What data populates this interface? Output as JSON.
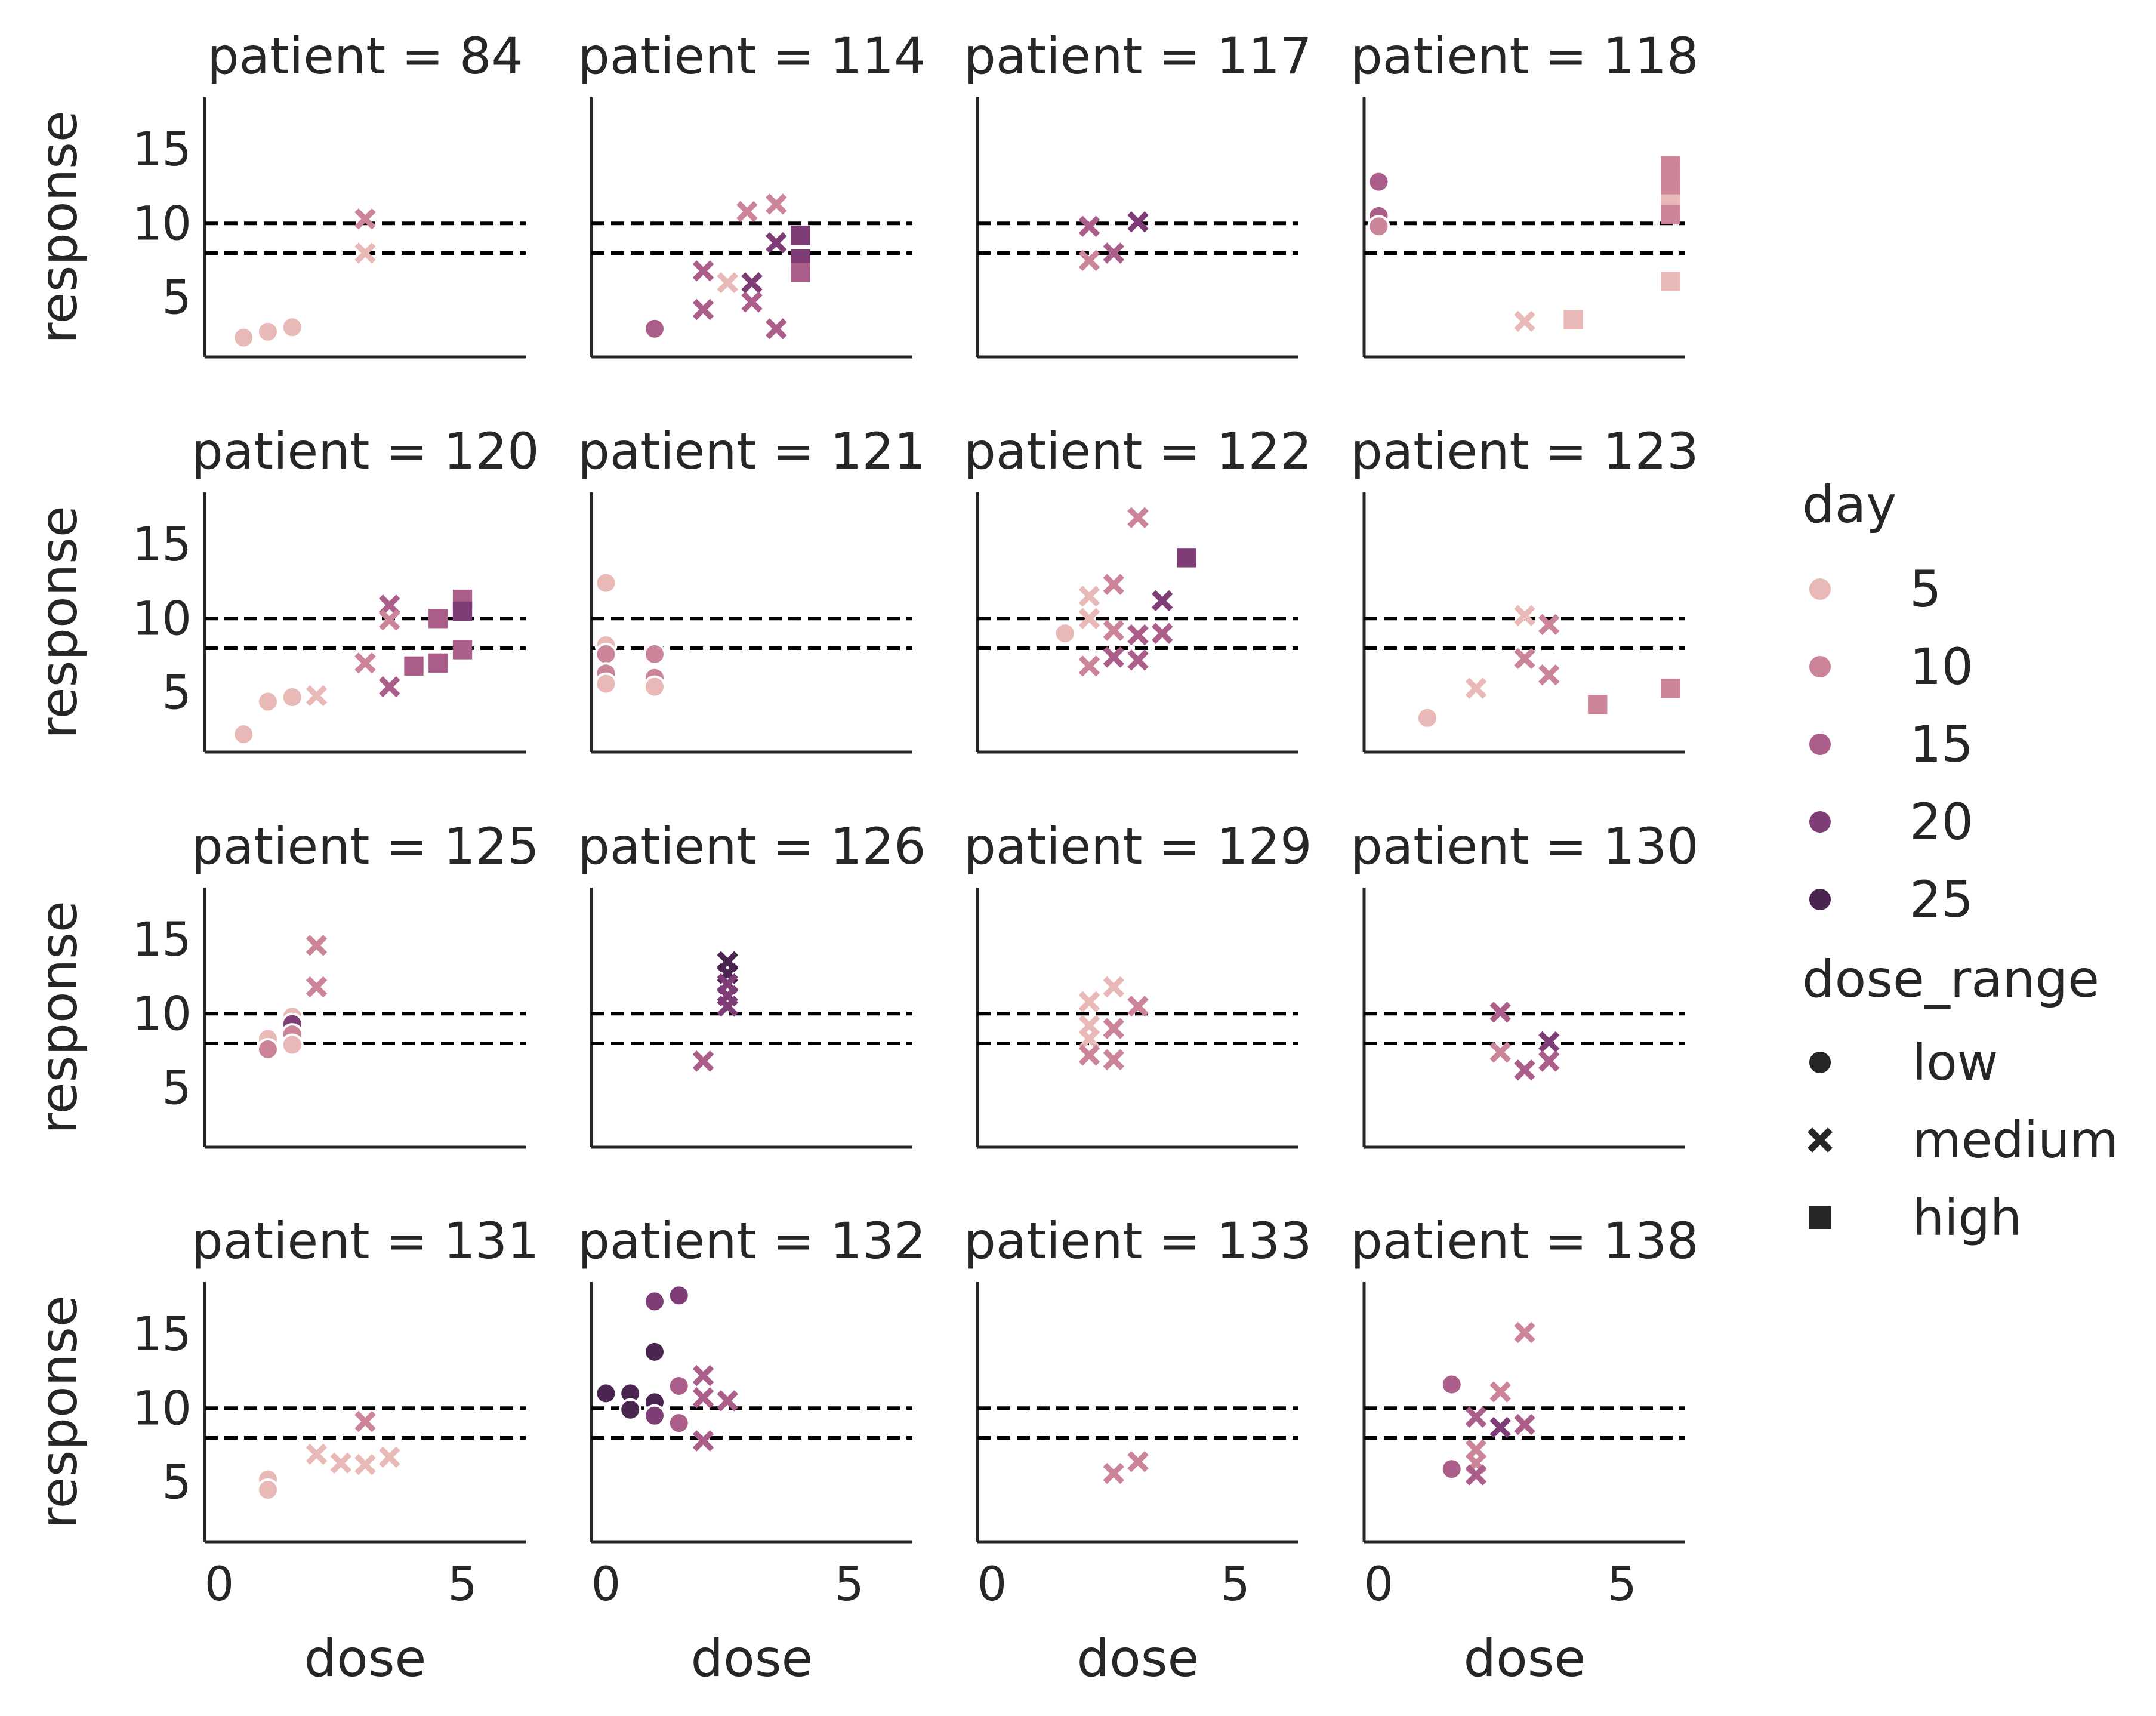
{
  "chart_data": {
    "type": "scatter",
    "facet_label": "patient",
    "xlabel": "dose",
    "ylabel": "response",
    "xlim": [
      -0.3,
      6.3
    ],
    "ylim": [
      1,
      18.5
    ],
    "xticks": [
      0,
      5
    ],
    "yticks": [
      5,
      10,
      15
    ],
    "reference_lines": [
      8,
      10
    ],
    "grid": false,
    "legend_position": "right",
    "hue": {
      "title": "day",
      "entries": [
        {
          "label": "5",
          "color": "#e8b9b6"
        },
        {
          "label": "10",
          "color": "#cc8499"
        },
        {
          "label": "15",
          "color": "#ac5e8a"
        },
        {
          "label": "20",
          "color": "#7e3d77"
        },
        {
          "label": "25",
          "color": "#4a2550"
        }
      ]
    },
    "style": {
      "title": "dose_range",
      "entries": [
        {
          "label": "low",
          "marker": "circle"
        },
        {
          "label": "medium",
          "marker": "x"
        },
        {
          "label": "high",
          "marker": "square"
        }
      ]
    },
    "panels": [
      {
        "patient": "84",
        "points": [
          {
            "x": 0.5,
            "y": 2.3,
            "day": 5,
            "dose_range": "low"
          },
          {
            "x": 1.0,
            "y": 2.7,
            "day": 5,
            "dose_range": "low"
          },
          {
            "x": 1.5,
            "y": 3.0,
            "day": 5,
            "dose_range": "low"
          },
          {
            "x": 3.0,
            "y": 10.3,
            "day": 10,
            "dose_range": "medium"
          },
          {
            "x": 3.0,
            "y": 8.0,
            "day": 5,
            "dose_range": "medium"
          }
        ]
      },
      {
        "patient": "114",
        "points": [
          {
            "x": 1.0,
            "y": 2.9,
            "day": 15,
            "dose_range": "low"
          },
          {
            "x": 2.0,
            "y": 4.2,
            "day": 15,
            "dose_range": "medium"
          },
          {
            "x": 2.0,
            "y": 6.8,
            "day": 15,
            "dose_range": "medium"
          },
          {
            "x": 2.5,
            "y": 6.0,
            "day": 5,
            "dose_range": "medium"
          },
          {
            "x": 2.9,
            "y": 10.8,
            "day": 10,
            "dose_range": "medium"
          },
          {
            "x": 3.0,
            "y": 6.0,
            "day": 20,
            "dose_range": "medium"
          },
          {
            "x": 3.0,
            "y": 4.7,
            "day": 15,
            "dose_range": "medium"
          },
          {
            "x": 3.5,
            "y": 11.3,
            "day": 10,
            "dose_range": "medium"
          },
          {
            "x": 3.5,
            "y": 8.7,
            "day": 20,
            "dose_range": "medium"
          },
          {
            "x": 3.5,
            "y": 2.9,
            "day": 15,
            "dose_range": "medium"
          },
          {
            "x": 4.0,
            "y": 9.2,
            "day": 20,
            "dose_range": "high"
          },
          {
            "x": 4.0,
            "y": 7.6,
            "day": 20,
            "dose_range": "high"
          },
          {
            "x": 4.0,
            "y": 6.7,
            "day": 15,
            "dose_range": "high"
          }
        ]
      },
      {
        "patient": "117",
        "points": [
          {
            "x": 2.0,
            "y": 9.8,
            "day": 15,
            "dose_range": "medium"
          },
          {
            "x": 2.0,
            "y": 7.5,
            "day": 10,
            "dose_range": "medium"
          },
          {
            "x": 2.5,
            "y": 8.0,
            "day": 15,
            "dose_range": "medium"
          },
          {
            "x": 3.0,
            "y": 10.1,
            "day": 20,
            "dose_range": "medium"
          }
        ]
      },
      {
        "patient": "118",
        "points": [
          {
            "x": 0.0,
            "y": 12.8,
            "day": 15,
            "dose_range": "low"
          },
          {
            "x": 0.0,
            "y": 10.5,
            "day": 15,
            "dose_range": "low"
          },
          {
            "x": 0.0,
            "y": 9.8,
            "day": 10,
            "dose_range": "low"
          },
          {
            "x": 3.0,
            "y": 3.4,
            "day": 5,
            "dose_range": "medium"
          },
          {
            "x": 4.0,
            "y": 3.5,
            "day": 5,
            "dose_range": "high"
          },
          {
            "x": 6.0,
            "y": 13.9,
            "day": 10,
            "dose_range": "high"
          },
          {
            "x": 6.0,
            "y": 13.4,
            "day": 10,
            "dose_range": "high"
          },
          {
            "x": 6.0,
            "y": 12.6,
            "day": 10,
            "dose_range": "high"
          },
          {
            "x": 6.0,
            "y": 11.3,
            "day": 5,
            "dose_range": "high"
          },
          {
            "x": 6.0,
            "y": 10.6,
            "day": 10,
            "dose_range": "high"
          },
          {
            "x": 6.0,
            "y": 6.1,
            "day": 5,
            "dose_range": "high"
          }
        ]
      },
      {
        "patient": "120",
        "points": [
          {
            "x": 0.5,
            "y": 2.2,
            "day": 5,
            "dose_range": "low"
          },
          {
            "x": 1.0,
            "y": 4.4,
            "day": 5,
            "dose_range": "low"
          },
          {
            "x": 1.5,
            "y": 4.7,
            "day": 5,
            "dose_range": "low"
          },
          {
            "x": 2.0,
            "y": 4.8,
            "day": 5,
            "dose_range": "medium"
          },
          {
            "x": 3.0,
            "y": 7.0,
            "day": 10,
            "dose_range": "medium"
          },
          {
            "x": 3.5,
            "y": 10.9,
            "day": 15,
            "dose_range": "medium"
          },
          {
            "x": 3.5,
            "y": 9.9,
            "day": 10,
            "dose_range": "medium"
          },
          {
            "x": 3.5,
            "y": 5.4,
            "day": 15,
            "dose_range": "medium"
          },
          {
            "x": 4.0,
            "y": 6.8,
            "day": 15,
            "dose_range": "high"
          },
          {
            "x": 4.5,
            "y": 10.0,
            "day": 15,
            "dose_range": "high"
          },
          {
            "x": 4.5,
            "y": 7.0,
            "day": 15,
            "dose_range": "high"
          },
          {
            "x": 5.0,
            "y": 11.3,
            "day": 15,
            "dose_range": "high"
          },
          {
            "x": 5.0,
            "y": 10.5,
            "day": 20,
            "dose_range": "high"
          },
          {
            "x": 5.0,
            "y": 7.9,
            "day": 15,
            "dose_range": "high"
          }
        ]
      },
      {
        "patient": "121",
        "points": [
          {
            "x": 0.0,
            "y": 12.4,
            "day": 5,
            "dose_range": "low"
          },
          {
            "x": 0.0,
            "y": 8.2,
            "day": 5,
            "dose_range": "low"
          },
          {
            "x": 0.0,
            "y": 7.6,
            "day": 10,
            "dose_range": "low"
          },
          {
            "x": 0.0,
            "y": 6.3,
            "day": 10,
            "dose_range": "low"
          },
          {
            "x": 0.0,
            "y": 5.6,
            "day": 5,
            "dose_range": "low"
          },
          {
            "x": 1.0,
            "y": 7.6,
            "day": 10,
            "dose_range": "low"
          },
          {
            "x": 1.0,
            "y": 6.0,
            "day": 10,
            "dose_range": "low"
          },
          {
            "x": 1.0,
            "y": 5.4,
            "day": 5,
            "dose_range": "low"
          }
        ]
      },
      {
        "patient": "122",
        "points": [
          {
            "x": 1.5,
            "y": 9.0,
            "day": 5,
            "dose_range": "low"
          },
          {
            "x": 2.0,
            "y": 11.5,
            "day": 5,
            "dose_range": "medium"
          },
          {
            "x": 2.0,
            "y": 10.0,
            "day": 5,
            "dose_range": "medium"
          },
          {
            "x": 2.0,
            "y": 6.8,
            "day": 10,
            "dose_range": "medium"
          },
          {
            "x": 2.5,
            "y": 12.3,
            "day": 10,
            "dose_range": "medium"
          },
          {
            "x": 2.5,
            "y": 9.2,
            "day": 10,
            "dose_range": "medium"
          },
          {
            "x": 2.5,
            "y": 7.4,
            "day": 15,
            "dose_range": "medium"
          },
          {
            "x": 3.0,
            "y": 16.8,
            "day": 10,
            "dose_range": "medium"
          },
          {
            "x": 3.0,
            "y": 8.9,
            "day": 15,
            "dose_range": "medium"
          },
          {
            "x": 3.0,
            "y": 7.2,
            "day": 15,
            "dose_range": "medium"
          },
          {
            "x": 3.5,
            "y": 11.2,
            "day": 20,
            "dose_range": "medium"
          },
          {
            "x": 3.5,
            "y": 9.0,
            "day": 15,
            "dose_range": "medium"
          },
          {
            "x": 4.0,
            "y": 14.1,
            "day": 20,
            "dose_range": "high"
          }
        ]
      },
      {
        "patient": "123",
        "points": [
          {
            "x": 1.0,
            "y": 3.3,
            "day": 5,
            "dose_range": "low"
          },
          {
            "x": 2.0,
            "y": 5.3,
            "day": 5,
            "dose_range": "medium"
          },
          {
            "x": 3.0,
            "y": 10.2,
            "day": 5,
            "dose_range": "medium"
          },
          {
            "x": 3.0,
            "y": 7.3,
            "day": 10,
            "dose_range": "medium"
          },
          {
            "x": 3.5,
            "y": 9.6,
            "day": 10,
            "dose_range": "medium"
          },
          {
            "x": 3.5,
            "y": 6.2,
            "day": 10,
            "dose_range": "medium"
          },
          {
            "x": 4.5,
            "y": 4.2,
            "day": 10,
            "dose_range": "high"
          },
          {
            "x": 6.0,
            "y": 5.3,
            "day": 10,
            "dose_range": "high"
          }
        ]
      },
      {
        "patient": "125",
        "points": [
          {
            "x": 1.0,
            "y": 8.3,
            "day": 5,
            "dose_range": "low"
          },
          {
            "x": 1.0,
            "y": 7.6,
            "day": 10,
            "dose_range": "low"
          },
          {
            "x": 1.5,
            "y": 9.8,
            "day": 5,
            "dose_range": "low"
          },
          {
            "x": 1.5,
            "y": 9.3,
            "day": 20,
            "dose_range": "low"
          },
          {
            "x": 1.5,
            "y": 8.6,
            "day": 10,
            "dose_range": "low"
          },
          {
            "x": 1.5,
            "y": 7.9,
            "day": 5,
            "dose_range": "low"
          },
          {
            "x": 2.0,
            "y": 14.6,
            "day": 10,
            "dose_range": "medium"
          },
          {
            "x": 2.0,
            "y": 11.8,
            "day": 10,
            "dose_range": "medium"
          }
        ]
      },
      {
        "patient": "126",
        "points": [
          {
            "x": 2.0,
            "y": 6.8,
            "day": 15,
            "dose_range": "medium"
          },
          {
            "x": 2.5,
            "y": 13.5,
            "day": 25,
            "dose_range": "medium"
          },
          {
            "x": 2.5,
            "y": 12.7,
            "day": 25,
            "dose_range": "medium"
          },
          {
            "x": 2.5,
            "y": 12.0,
            "day": 20,
            "dose_range": "medium"
          },
          {
            "x": 2.5,
            "y": 11.2,
            "day": 20,
            "dose_range": "medium"
          },
          {
            "x": 2.5,
            "y": 10.5,
            "day": 20,
            "dose_range": "medium"
          }
        ]
      },
      {
        "patient": "129",
        "points": [
          {
            "x": 2.0,
            "y": 10.8,
            "day": 5,
            "dose_range": "medium"
          },
          {
            "x": 2.0,
            "y": 9.2,
            "day": 5,
            "dose_range": "medium"
          },
          {
            "x": 2.0,
            "y": 8.3,
            "day": 5,
            "dose_range": "medium"
          },
          {
            "x": 2.0,
            "y": 7.2,
            "day": 10,
            "dose_range": "medium"
          },
          {
            "x": 2.5,
            "y": 11.8,
            "day": 5,
            "dose_range": "medium"
          },
          {
            "x": 2.5,
            "y": 9.0,
            "day": 10,
            "dose_range": "medium"
          },
          {
            "x": 2.5,
            "y": 6.9,
            "day": 10,
            "dose_range": "medium"
          },
          {
            "x": 3.0,
            "y": 10.5,
            "day": 10,
            "dose_range": "medium"
          }
        ]
      },
      {
        "patient": "130",
        "points": [
          {
            "x": 2.5,
            "y": 10.1,
            "day": 15,
            "dose_range": "medium"
          },
          {
            "x": 2.5,
            "y": 7.4,
            "day": 10,
            "dose_range": "medium"
          },
          {
            "x": 3.0,
            "y": 6.2,
            "day": 15,
            "dose_range": "medium"
          },
          {
            "x": 3.5,
            "y": 8.1,
            "day": 20,
            "dose_range": "medium"
          },
          {
            "x": 3.5,
            "y": 6.8,
            "day": 15,
            "dose_range": "medium"
          }
        ]
      },
      {
        "patient": "131",
        "points": [
          {
            "x": 1.0,
            "y": 5.2,
            "day": 5,
            "dose_range": "low"
          },
          {
            "x": 1.0,
            "y": 4.5,
            "day": 5,
            "dose_range": "low"
          },
          {
            "x": 2.0,
            "y": 6.9,
            "day": 5,
            "dose_range": "medium"
          },
          {
            "x": 2.5,
            "y": 6.3,
            "day": 5,
            "dose_range": "medium"
          },
          {
            "x": 3.0,
            "y": 9.1,
            "day": 10,
            "dose_range": "medium"
          },
          {
            "x": 3.0,
            "y": 6.2,
            "day": 5,
            "dose_range": "medium"
          },
          {
            "x": 3.5,
            "y": 6.7,
            "day": 5,
            "dose_range": "medium"
          }
        ]
      },
      {
        "patient": "132",
        "points": [
          {
            "x": 0.0,
            "y": 11.0,
            "day": 25,
            "dose_range": "low"
          },
          {
            "x": 0.5,
            "y": 11.0,
            "day": 25,
            "dose_range": "low"
          },
          {
            "x": 0.5,
            "y": 9.9,
            "day": 25,
            "dose_range": "low"
          },
          {
            "x": 1.0,
            "y": 17.2,
            "day": 20,
            "dose_range": "low"
          },
          {
            "x": 1.0,
            "y": 13.8,
            "day": 25,
            "dose_range": "low"
          },
          {
            "x": 1.0,
            "y": 10.4,
            "day": 25,
            "dose_range": "low"
          },
          {
            "x": 1.0,
            "y": 9.5,
            "day": 20,
            "dose_range": "low"
          },
          {
            "x": 1.5,
            "y": 17.6,
            "day": 20,
            "dose_range": "low"
          },
          {
            "x": 1.5,
            "y": 11.5,
            "day": 15,
            "dose_range": "low"
          },
          {
            "x": 1.5,
            "y": 9.0,
            "day": 15,
            "dose_range": "low"
          },
          {
            "x": 2.0,
            "y": 12.2,
            "day": 15,
            "dose_range": "medium"
          },
          {
            "x": 2.0,
            "y": 10.7,
            "day": 15,
            "dose_range": "medium"
          },
          {
            "x": 2.0,
            "y": 7.8,
            "day": 15,
            "dose_range": "medium"
          },
          {
            "x": 2.5,
            "y": 10.5,
            "day": 15,
            "dose_range": "medium"
          }
        ]
      },
      {
        "patient": "133",
        "points": [
          {
            "x": 2.5,
            "y": 5.6,
            "day": 10,
            "dose_range": "medium"
          },
          {
            "x": 3.0,
            "y": 6.4,
            "day": 10,
            "dose_range": "medium"
          }
        ]
      },
      {
        "patient": "138",
        "points": [
          {
            "x": 1.5,
            "y": 11.6,
            "day": 15,
            "dose_range": "low"
          },
          {
            "x": 1.5,
            "y": 5.9,
            "day": 15,
            "dose_range": "low"
          },
          {
            "x": 2.0,
            "y": 9.4,
            "day": 15,
            "dose_range": "medium"
          },
          {
            "x": 2.0,
            "y": 7.2,
            "day": 10,
            "dose_range": "medium"
          },
          {
            "x": 2.0,
            "y": 6.3,
            "day": 10,
            "dose_range": "medium"
          },
          {
            "x": 2.0,
            "y": 5.5,
            "day": 15,
            "dose_range": "medium"
          },
          {
            "x": 2.5,
            "y": 11.1,
            "day": 10,
            "dose_range": "medium"
          },
          {
            "x": 2.5,
            "y": 8.7,
            "day": 20,
            "dose_range": "medium"
          },
          {
            "x": 3.0,
            "y": 15.1,
            "day": 10,
            "dose_range": "medium"
          },
          {
            "x": 3.0,
            "y": 8.9,
            "day": 15,
            "dose_range": "medium"
          }
        ]
      }
    ]
  }
}
